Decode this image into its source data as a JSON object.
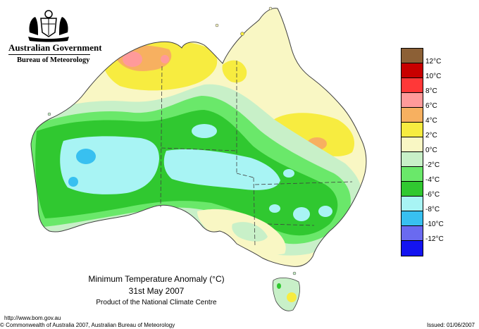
{
  "header": {
    "org_name": "Australian Government",
    "org_sub": "Bureau of Meteorology",
    "crest_icon": "coat-of-arms-icon"
  },
  "caption": {
    "title": "Minimum Temperature Anomaly (°C)",
    "date": "31st May 2007",
    "centre": "Product of the National Climate Centre"
  },
  "footer": {
    "url": "http://www.bom.gov.au",
    "copyright": "© Commonwealth of Australia 2007, Australian Bureau of Meteorology",
    "issued": "Issued: 01/06/2007"
  },
  "legend": {
    "labels": [
      "12°C",
      "10°C",
      "8°C",
      "6°C",
      "4°C",
      "2°C",
      "0°C",
      "-2°C",
      "-4°C",
      "-6°C",
      "-8°C",
      "-10°C",
      "-12°C"
    ],
    "colors": [
      "#8c6036",
      "#c80000",
      "#ff3838",
      "#ff9a9a",
      "#f7b060",
      "#f7ec40",
      "#f9f7c4",
      "#c8f0c8",
      "#6ae86a",
      "#30c830",
      "#a8f4f4",
      "#38c0f0",
      "#6a6af0",
      "#1414f0"
    ]
  },
  "map": {
    "ocean": "#ffffff",
    "border_color": "#404040"
  }
}
